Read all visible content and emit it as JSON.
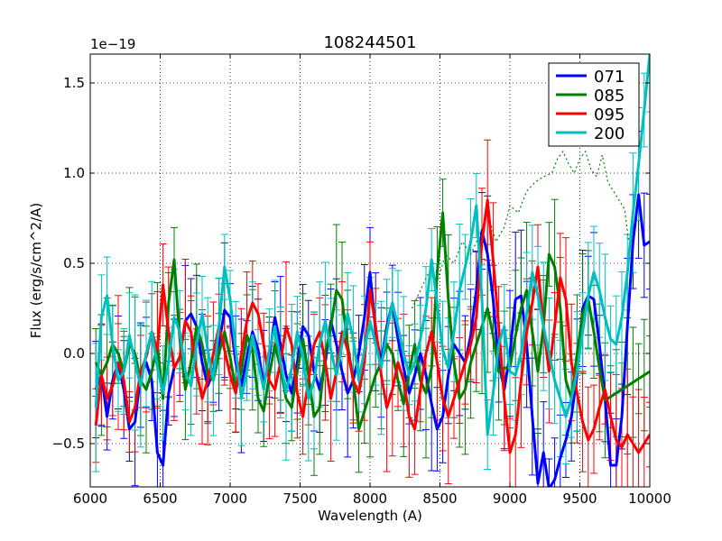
{
  "chart_data": {
    "type": "line",
    "title": "108244501",
    "xlabel": "Wavelength (A)",
    "ylabel": "Flux (erg/s/cm^2/A)",
    "offset_label": "1e−19",
    "xlim": [
      6000,
      10000
    ],
    "ylim": [
      -0.74,
      1.66
    ],
    "xticks": [
      6000,
      6500,
      7000,
      7500,
      8000,
      8500,
      9000,
      9500,
      10000
    ],
    "yticks": [
      -0.5,
      0.0,
      0.5,
      1.0,
      1.5
    ],
    "ytick_labels": [
      "−0.5",
      "0.0",
      "0.5",
      "1.0",
      "1.5"
    ],
    "grid": true,
    "legend_position": "top-right",
    "series": [
      {
        "name": "071",
        "color": "#0000ff",
        "err_color": "#0000ff",
        "x": [
          6040,
          6080,
          6120,
          6160,
          6200,
          6240,
          6280,
          6320,
          6360,
          6400,
          6440,
          6480,
          6520,
          6560,
          6600,
          6640,
          6680,
          6720,
          6760,
          6800,
          6840,
          6880,
          6920,
          6960,
          7000,
          7040,
          7080,
          7120,
          7160,
          7200,
          7240,
          7280,
          7320,
          7360,
          7400,
          7440,
          7480,
          7520,
          7560,
          7600,
          7640,
          7680,
          7720,
          7760,
          7800,
          7840,
          7880,
          7920,
          7960,
          8000,
          8040,
          8080,
          8120,
          8160,
          8200,
          8240,
          8280,
          8320,
          8360,
          8400,
          8440,
          8480,
          8520,
          8560,
          8600,
          8640,
          8680,
          8720,
          8760,
          8800,
          8840,
          8880,
          8920,
          8960,
          9000,
          9040,
          9080,
          9120,
          9160,
          9200,
          9240,
          9280,
          9320,
          9360,
          9400,
          9440,
          9480,
          9520,
          9560,
          9600,
          9640,
          9680,
          9720,
          9760,
          9800,
          9840,
          9880,
          9920,
          9960,
          10000
        ],
        "y": [
          -0.2,
          -0.12,
          -0.35,
          -0.15,
          -0.05,
          -0.2,
          -0.42,
          -0.38,
          -0.12,
          -0.05,
          -0.15,
          -0.55,
          -0.62,
          -0.22,
          -0.08,
          -0.02,
          0.18,
          0.22,
          0.15,
          -0.05,
          -0.18,
          -0.1,
          0.05,
          0.24,
          0.2,
          -0.05,
          -0.18,
          -0.02,
          0.12,
          0.02,
          -0.18,
          -0.02,
          0.2,
          0.05,
          -0.12,
          -0.22,
          -0.05,
          0.15,
          0.1,
          -0.1,
          -0.2,
          -0.05,
          0.18,
          0.05,
          -0.1,
          -0.22,
          -0.15,
          0.0,
          0.2,
          0.45,
          0.12,
          -0.05,
          0.15,
          0.28,
          0.08,
          -0.08,
          -0.22,
          -0.12,
          0.0,
          -0.12,
          -0.28,
          -0.42,
          -0.35,
          -0.12,
          0.05,
          0.0,
          -0.05,
          0.1,
          0.35,
          0.68,
          0.55,
          0.3,
          -0.05,
          -0.2,
          0.0,
          0.3,
          0.32,
          0.05,
          -0.35,
          -0.72,
          -0.55,
          -0.75,
          -0.7,
          -0.58,
          -0.48,
          -0.35,
          -0.12,
          0.25,
          0.32,
          0.3,
          0.05,
          -0.25,
          -0.62,
          -0.62,
          -0.35,
          0.15,
          0.62,
          0.88,
          0.6,
          0.62
        ]
      },
      {
        "name": "085",
        "color": "#008000",
        "err_color": "#008000",
        "x": [
          6040,
          6080,
          6120,
          6160,
          6200,
          6240,
          6280,
          6320,
          6360,
          6400,
          6440,
          6480,
          6520,
          6560,
          6600,
          6640,
          6680,
          6720,
          6760,
          6800,
          6840,
          6880,
          6920,
          6960,
          7000,
          7040,
          7080,
          7120,
          7160,
          7200,
          7240,
          7280,
          7320,
          7360,
          7400,
          7440,
          7480,
          7520,
          7560,
          7600,
          7640,
          7680,
          7720,
          7760,
          7800,
          7840,
          7880,
          7920,
          7960,
          8000,
          8040,
          8080,
          8120,
          8160,
          8200,
          8240,
          8280,
          8320,
          8360,
          8400,
          8440,
          8480,
          8520,
          8560,
          8600,
          8640,
          8680,
          8720,
          8760,
          8800,
          8840,
          8880,
          8920,
          8960,
          9000,
          9040,
          9080,
          9120,
          9160,
          9200,
          9240,
          9280,
          9320,
          9360,
          9400,
          9440,
          9480,
          9520,
          9560,
          9600,
          9640,
          9680,
          9720,
          9760,
          9800,
          9840,
          9880,
          9920,
          9960,
          10000
        ],
        "y": [
          -0.05,
          -0.12,
          -0.05,
          0.05,
          0.0,
          -0.1,
          0.05,
          0.0,
          -0.15,
          -0.2,
          -0.1,
          0.05,
          -0.25,
          0.28,
          0.52,
          0.08,
          -0.2,
          -0.05,
          0.15,
          0.05,
          -0.12,
          -0.15,
          0.0,
          0.12,
          -0.02,
          -0.2,
          -0.1,
          0.1,
          0.02,
          -0.25,
          -0.32,
          -0.12,
          0.05,
          -0.08,
          -0.25,
          -0.3,
          -0.1,
          0.08,
          -0.12,
          -0.35,
          -0.3,
          0.0,
          0.15,
          0.35,
          0.3,
          0.05,
          -0.15,
          -0.42,
          -0.32,
          -0.22,
          -0.12,
          -0.05,
          0.05,
          0.0,
          -0.15,
          -0.28,
          -0.1,
          0.05,
          -0.15,
          -0.22,
          -0.08,
          0.45,
          0.78,
          0.3,
          -0.05,
          -0.25,
          -0.2,
          -0.05,
          0.05,
          0.15,
          0.25,
          0.1,
          -0.1,
          -0.08,
          -0.08,
          0.1,
          0.25,
          0.35,
          0.12,
          -0.1,
          0.15,
          0.55,
          0.48,
          0.25,
          -0.15,
          -0.25,
          0.0,
          0.22,
          0.3,
          0.12,
          -0.08,
          -0.26,
          -0.24,
          -0.22,
          -0.2,
          -0.18,
          -0.16,
          -0.14,
          -0.12,
          -0.1
        ]
      },
      {
        "name": "095",
        "color": "#ff0000",
        "err_color": "#ff0000",
        "x": [
          6040,
          6080,
          6120,
          6160,
          6200,
          6240,
          6280,
          6320,
          6360,
          6400,
          6440,
          6480,
          6520,
          6560,
          6600,
          6640,
          6680,
          6720,
          6760,
          6800,
          6840,
          6880,
          6920,
          6960,
          7000,
          7040,
          7080,
          7120,
          7160,
          7200,
          7240,
          7280,
          7320,
          7360,
          7400,
          7440,
          7480,
          7520,
          7560,
          7600,
          7640,
          7680,
          7720,
          7760,
          7800,
          7840,
          7880,
          7920,
          7960,
          8000,
          8040,
          8080,
          8120,
          8160,
          8200,
          8240,
          8280,
          8320,
          8360,
          8400,
          8440,
          8480,
          8520,
          8560,
          8600,
          8640,
          8680,
          8720,
          8760,
          8800,
          8840,
          8880,
          8920,
          8960,
          9000,
          9040,
          9080,
          9120,
          9160,
          9200,
          9240,
          9280,
          9320,
          9360,
          9400,
          9440,
          9480,
          9520,
          9560,
          9600,
          9640,
          9680,
          9720,
          9760,
          9800,
          9840,
          9880,
          9920,
          9960,
          10000
        ],
        "y": [
          -0.4,
          -0.12,
          -0.25,
          -0.18,
          -0.05,
          -0.15,
          -0.38,
          -0.3,
          -0.1,
          -0.02,
          0.12,
          0.02,
          0.38,
          0.12,
          -0.08,
          -0.02,
          0.18,
          0.12,
          -0.1,
          -0.25,
          -0.15,
          0.0,
          0.15,
          0.02,
          -0.12,
          -0.22,
          0.0,
          0.18,
          0.28,
          0.22,
          0.05,
          -0.15,
          -0.2,
          -0.05,
          0.15,
          0.05,
          -0.22,
          -0.35,
          -0.15,
          0.05,
          0.12,
          -0.05,
          -0.25,
          -0.1,
          0.12,
          0.02,
          -0.15,
          -0.22,
          -0.05,
          0.35,
          0.15,
          -0.12,
          -0.3,
          -0.2,
          -0.05,
          -0.15,
          -0.35,
          -0.42,
          -0.2,
          0.0,
          0.12,
          -0.05,
          -0.25,
          -0.35,
          -0.25,
          -0.15,
          -0.05,
          0.05,
          0.2,
          0.62,
          0.85,
          0.52,
          0.15,
          -0.25,
          -0.55,
          -0.45,
          -0.15,
          0.12,
          0.28,
          0.48,
          0.15,
          -0.1,
          0.15,
          0.42,
          0.3,
          -0.05,
          -0.22,
          -0.38,
          -0.48,
          -0.42,
          -0.3,
          -0.2,
          -0.35,
          -0.48,
          -0.52,
          -0.45,
          -0.5,
          -0.55,
          -0.5,
          -0.45
        ]
      },
      {
        "name": "200",
        "color": "#00bfbf",
        "err_color": "#00bfbf",
        "x": [
          6040,
          6080,
          6120,
          6160,
          6200,
          6240,
          6280,
          6320,
          6360,
          6400,
          6440,
          6480,
          6520,
          6560,
          6600,
          6640,
          6680,
          6720,
          6760,
          6800,
          6840,
          6880,
          6920,
          6960,
          7000,
          7040,
          7080,
          7120,
          7160,
          7200,
          7240,
          7280,
          7320,
          7360,
          7400,
          7440,
          7480,
          7520,
          7560,
          7600,
          7640,
          7680,
          7720,
          7760,
          7800,
          7840,
          7880,
          7920,
          7960,
          8000,
          8040,
          8080,
          8120,
          8160,
          8200,
          8240,
          8280,
          8320,
          8360,
          8400,
          8440,
          8480,
          8520,
          8560,
          8600,
          8640,
          8680,
          8720,
          8760,
          8800,
          8840,
          8880,
          8920,
          8960,
          9000,
          9040,
          9080,
          9120,
          9160,
          9200,
          9240,
          9280,
          9320,
          9360,
          9400,
          9440,
          9480,
          9520,
          9560,
          9600,
          9640,
          9680,
          9720,
          9760,
          9800,
          9840,
          9880,
          9920,
          9960,
          10000
        ],
        "y": [
          -0.3,
          0.2,
          0.32,
          0.05,
          -0.15,
          -0.1,
          0.1,
          -0.05,
          -0.18,
          0.0,
          0.12,
          -0.08,
          -0.22,
          -0.05,
          0.2,
          0.12,
          -0.1,
          -0.18,
          0.05,
          0.22,
          0.02,
          -0.15,
          0.15,
          0.48,
          0.3,
          0.02,
          -0.25,
          -0.1,
          0.1,
          -0.05,
          -0.2,
          0.02,
          0.15,
          -0.05,
          -0.22,
          -0.08,
          0.12,
          -0.02,
          -0.25,
          -0.15,
          0.05,
          0.18,
          0.02,
          -0.12,
          0.05,
          0.22,
          0.08,
          -0.15,
          0.02,
          0.18,
          0.05,
          -0.08,
          0.12,
          0.28,
          0.15,
          0.0,
          -0.12,
          -0.05,
          0.08,
          0.25,
          0.52,
          0.28,
          0.02,
          -0.08,
          0.12,
          0.35,
          0.48,
          0.62,
          0.82,
          0.3,
          -0.45,
          -0.22,
          0.05,
          0.15,
          -0.1,
          -0.12,
          0.0,
          0.22,
          0.45,
          0.32,
          0.15,
          0.0,
          -0.15,
          -0.25,
          -0.35,
          -0.25,
          -0.1,
          0.12,
          0.32,
          0.45,
          0.35,
          0.2,
          0.08,
          0.05,
          0.2,
          0.45,
          0.78,
          1.05,
          1.35,
          1.66
        ]
      }
    ],
    "dotted_overlay": {
      "color": "#008000",
      "x": [
        8300,
        8360,
        8420,
        8480,
        8540,
        8600,
        8660,
        8720,
        8780,
        8840,
        8900,
        8960,
        9000,
        9060,
        9120,
        9180,
        9240,
        9300,
        9340,
        9380,
        9420,
        9460,
        9500,
        9540,
        9580,
        9620,
        9660,
        9700,
        9740,
        9780,
        9820,
        9850
      ],
      "y": [
        0.25,
        0.35,
        0.45,
        0.4,
        0.55,
        0.5,
        0.62,
        0.55,
        0.65,
        0.78,
        0.62,
        0.7,
        0.82,
        0.78,
        0.9,
        0.95,
        0.98,
        1.0,
        1.08,
        1.12,
        1.05,
        1.0,
        1.08,
        1.12,
        1.02,
        0.98,
        1.1,
        0.95,
        0.9,
        0.85,
        0.8,
        0.62
      ]
    }
  }
}
